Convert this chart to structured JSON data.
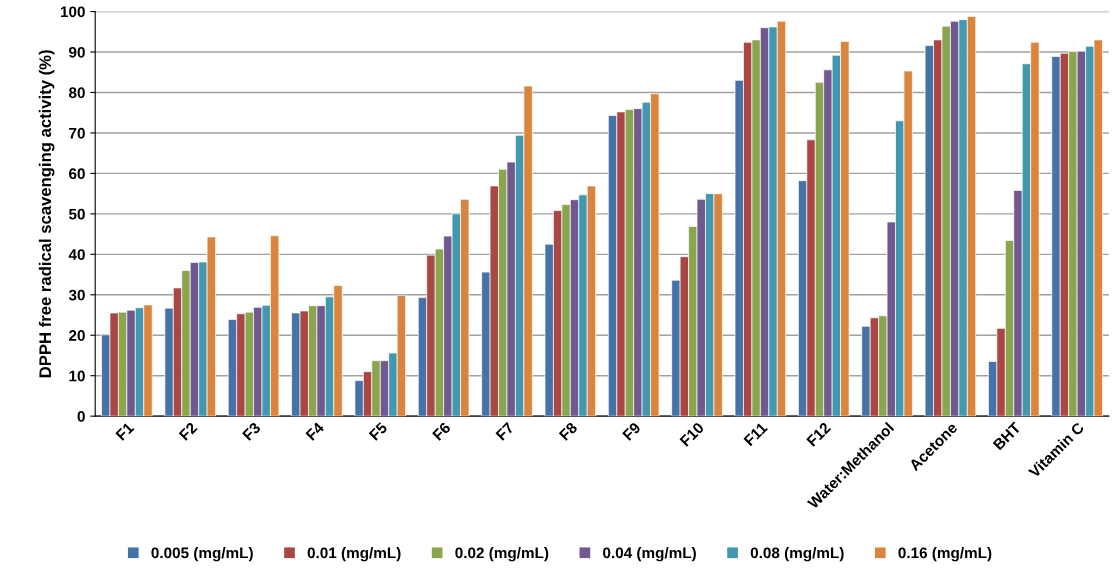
{
  "chart_data": {
    "type": "bar",
    "ylabel": "DPPH free radical scavenging activity (%)",
    "categories": [
      "F1",
      "F2",
      "F3",
      "F4",
      "F5",
      "F6",
      "F7",
      "F8",
      "F9",
      "F10",
      "F11",
      "F12",
      "Water:Methanol",
      "Acetone",
      "BHT",
      "Vitamin C"
    ],
    "series": [
      {
        "name": "0.005 (mg/mL)",
        "color": "#4572a7",
        "values": [
          20.1,
          26.7,
          23.9,
          25.5,
          8.8,
          29.3,
          35.6,
          42.5,
          74.3,
          33.6,
          83.0,
          58.2,
          22.2,
          91.6,
          13.5,
          88.9
        ]
      },
      {
        "name": "0.01 (mg/mL)",
        "color": "#aa4643",
        "values": [
          25.5,
          31.7,
          25.3,
          26.0,
          11.0,
          39.8,
          56.9,
          50.8,
          75.2,
          39.4,
          92.4,
          68.3,
          24.3,
          93.0,
          21.7,
          89.7
        ]
      },
      {
        "name": "0.02 (mg/mL)",
        "color": "#89a54e",
        "values": [
          25.7,
          36.0,
          25.7,
          27.3,
          13.7,
          41.3,
          61.0,
          52.3,
          75.8,
          46.9,
          93.0,
          82.5,
          24.8,
          96.4,
          43.4,
          90.1
        ]
      },
      {
        "name": "0.04 (mg/mL)",
        "color": "#71588f",
        "values": [
          26.2,
          38.0,
          26.9,
          27.3,
          13.7,
          44.5,
          62.8,
          53.5,
          76.0,
          53.6,
          96.0,
          85.6,
          48.0,
          97.6,
          55.8,
          90.2
        ]
      },
      {
        "name": "0.08 (mg/mL)",
        "color": "#4198af",
        "values": [
          26.8,
          38.1,
          27.4,
          29.5,
          15.6,
          50.0,
          69.4,
          54.7,
          77.6,
          55.0,
          96.2,
          89.2,
          73.0,
          98.0,
          87.1,
          91.4
        ]
      },
      {
        "name": "0.16 (mg/mL)",
        "color": "#db843d",
        "values": [
          27.5,
          44.3,
          44.6,
          32.3,
          29.9,
          53.6,
          81.6,
          56.9,
          79.7,
          55.0,
          97.6,
          92.6,
          85.3,
          98.8,
          92.4,
          93.0
        ]
      }
    ],
    "ylim": [
      0,
      100
    ],
    "yticks": [
      0,
      10,
      20,
      30,
      40,
      50,
      60,
      70,
      80,
      90,
      100
    ],
    "grid": "y",
    "legend": "bottom"
  }
}
